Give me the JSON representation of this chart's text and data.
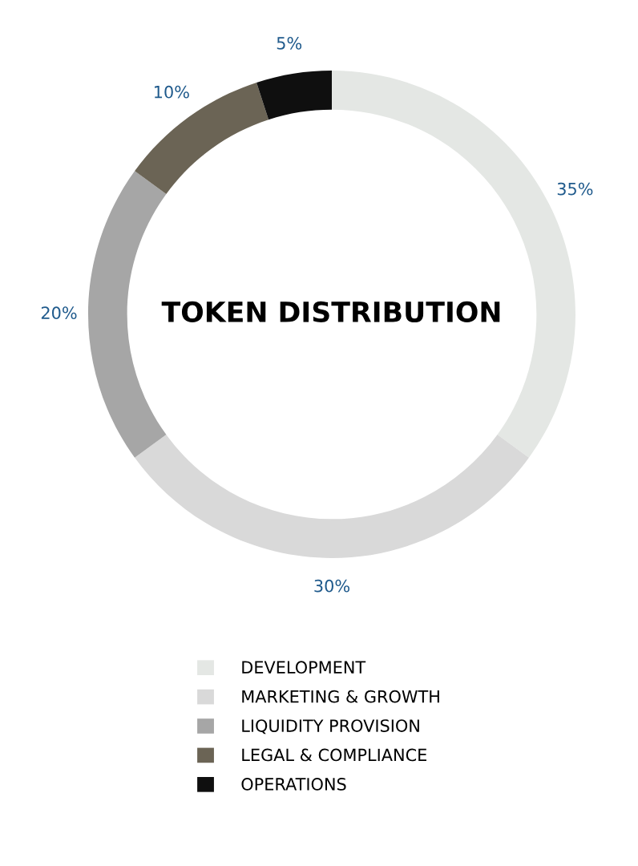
{
  "chart_data": {
    "type": "donut",
    "title": "TOKEN DISTRIBUTION",
    "categories": [
      "DEVELOPMENT",
      "MARKETING & GROWTH",
      "LIQUIDITY PROVISION",
      "LEGAL & COMPLIANCE",
      "OPERATIONS"
    ],
    "values": [
      35,
      30,
      20,
      10,
      5
    ],
    "colors": [
      "#e4e7e4",
      "#d9d9d9",
      "#a6a6a6",
      "#6b6455",
      "#0f0f0f"
    ],
    "value_labels": [
      "35%",
      "30%",
      "20%",
      "10%",
      "5%"
    ],
    "legend": "bottom"
  }
}
